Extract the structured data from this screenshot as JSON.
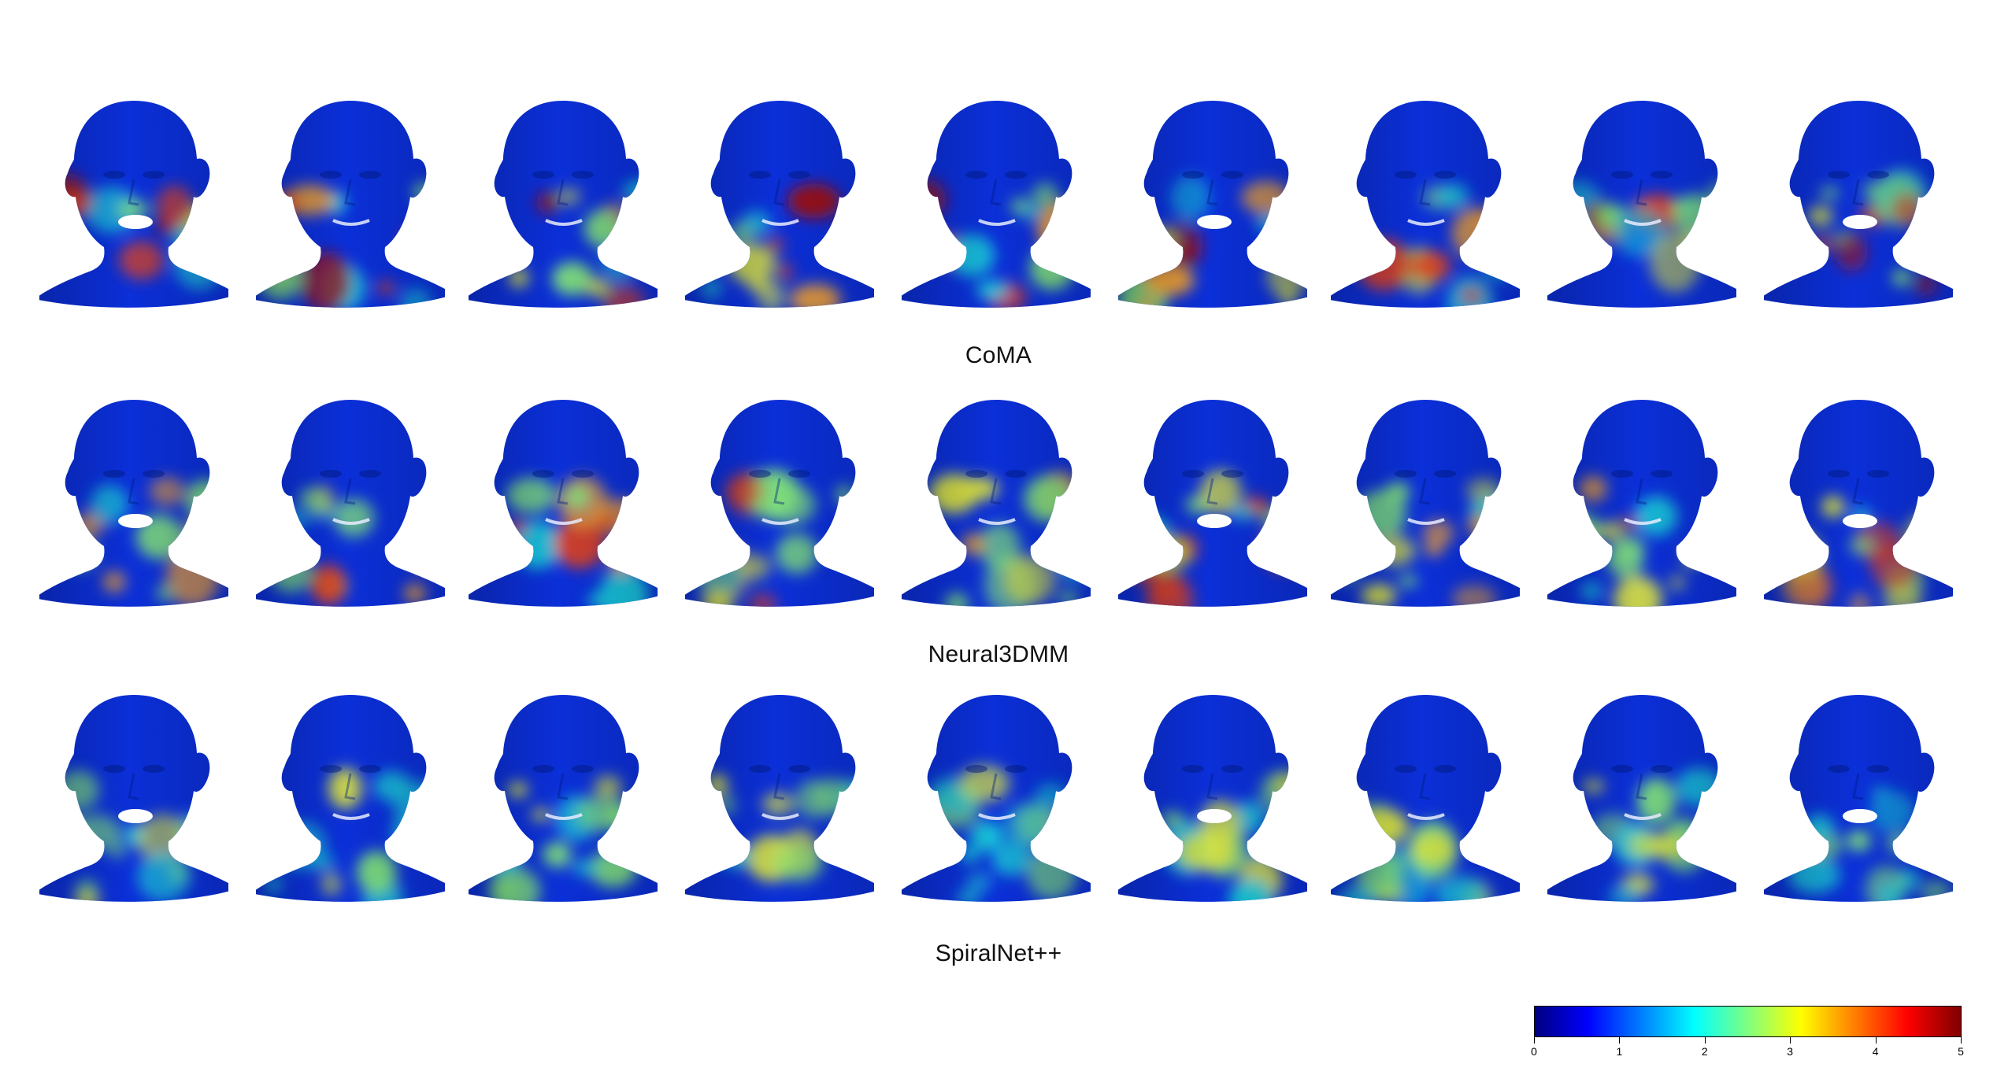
{
  "rows": [
    {
      "label": "CoMA"
    },
    {
      "label": "Neural3DMM"
    },
    {
      "label": "SpiralNet++"
    }
  ],
  "heads_per_row": 9,
  "colormap": {
    "name": "jet",
    "stops": [
      "#00007f",
      "#0000ff",
      "#007fff",
      "#00ffff",
      "#7fff7f",
      "#ffff00",
      "#ff7f00",
      "#ff0000",
      "#7f0000"
    ]
  },
  "colorbar": {
    "min": 0,
    "max": 5,
    "ticks": [
      "0",
      "1",
      "2",
      "3",
      "4",
      "5"
    ]
  },
  "open_mouth_heads": [
    0,
    5,
    8
  ]
}
